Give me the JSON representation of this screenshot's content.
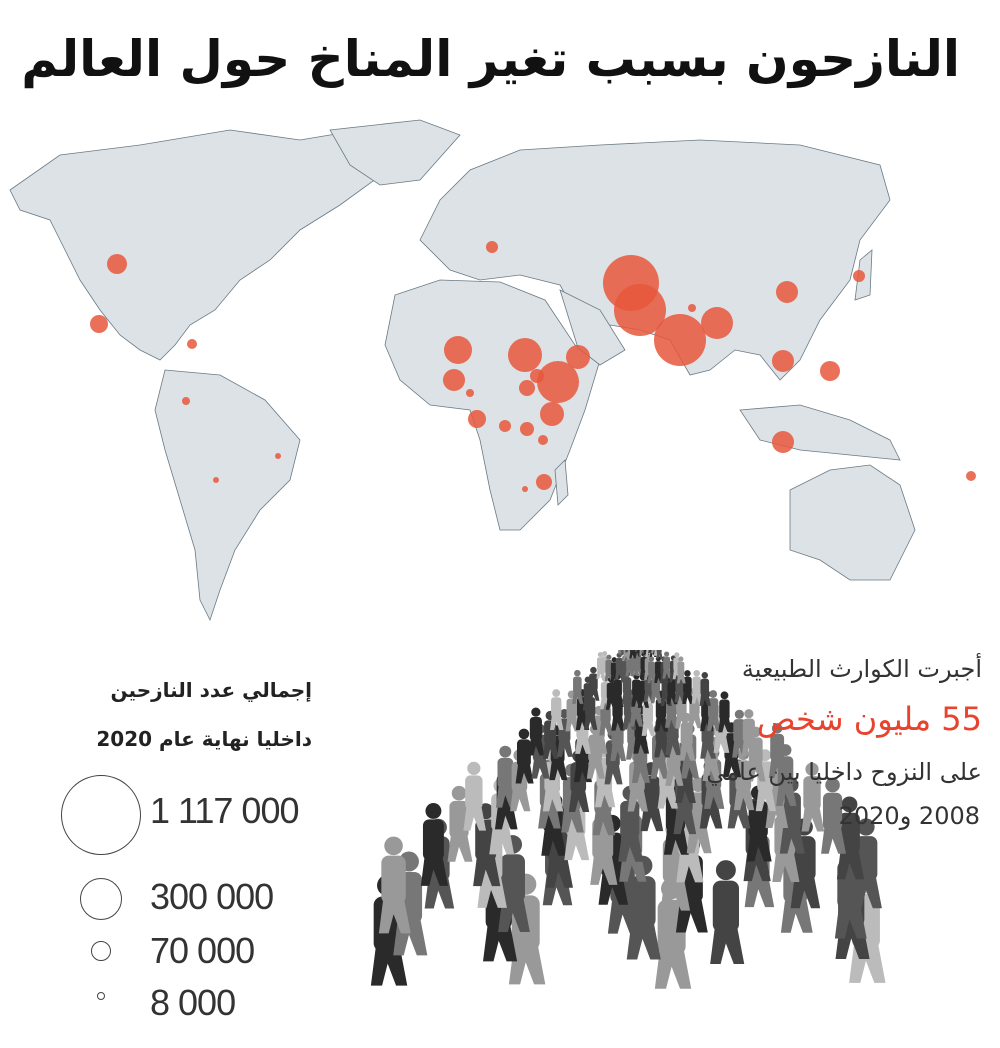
{
  "title": "النازحون بسبب تغير المناخ حول العالم",
  "stats": {
    "line1": "أجبرت الكوارث الطبيعية",
    "highlight": "55 مليون شخص",
    "line3": "على النزوح داخليا بين عامي",
    "line4": "2008 و2020"
  },
  "legend": {
    "title_line1": "إجمالي عدد النازحين",
    "title_line2": "داخليا نهاية عام 2020",
    "items": [
      {
        "label": "1 117 000",
        "value": 1117000
      },
      {
        "label": "300 000",
        "value": 300000
      },
      {
        "label": "70 000",
        "value": 70000
      },
      {
        "label": "8 000",
        "value": 8000
      }
    ]
  },
  "colors": {
    "bubble": "#e8573c",
    "land": "#dce2e5",
    "border": "#6b7a85",
    "highlight_text": "#e8432e"
  }
}
